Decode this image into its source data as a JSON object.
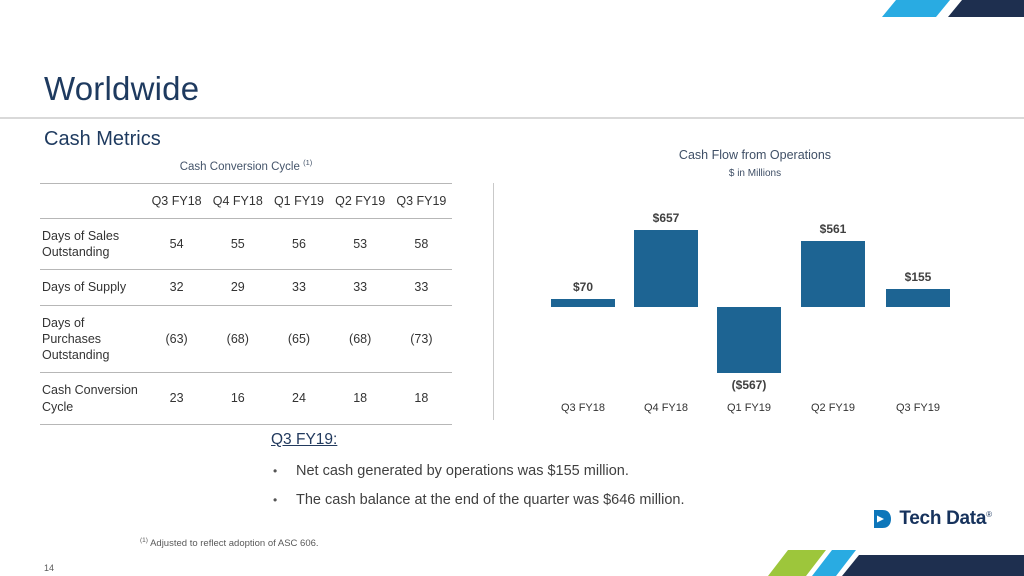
{
  "slide": {
    "page_number": "14",
    "title": "Worldwide",
    "subtitle": "Cash Metrics",
    "footnote_marker": "(1)",
    "footnote": "Adjusted to reflect adoption of ASC 606."
  },
  "table": {
    "title": "Cash Conversion Cycle",
    "title_note": "(1)",
    "columns": [
      "Q3 FY18",
      "Q4 FY18",
      "Q1 FY19",
      "Q2 FY19",
      "Q3 FY19"
    ],
    "rows": [
      {
        "label": "Days of Sales Outstanding",
        "values": [
          "54",
          "55",
          "56",
          "53",
          "58"
        ]
      },
      {
        "label": "Days of Supply",
        "values": [
          "32",
          "29",
          "33",
          "33",
          "33"
        ]
      },
      {
        "label": "Days of Purchases Outstanding",
        "values": [
          "(63)",
          "(68)",
          "(65)",
          "(68)",
          "(73)"
        ]
      },
      {
        "label": "Cash Conversion Cycle",
        "values": [
          "23",
          "16",
          "24",
          "18",
          "18"
        ]
      }
    ]
  },
  "chart_data": {
    "type": "bar",
    "title": "Cash Flow from Operations",
    "subtitle": "$ in Millions",
    "categories": [
      "Q3 FY18",
      "Q4 FY18",
      "Q1 FY19",
      "Q2 FY19",
      "Q3 FY19"
    ],
    "values": [
      70,
      657,
      -567,
      561,
      155
    ],
    "labels": [
      "$70",
      "$657",
      "($567)",
      "$561",
      "$155"
    ],
    "bar_color": "#1d6493",
    "ylim": [
      -650,
      750
    ],
    "grid": false,
    "legend": false
  },
  "highlights": {
    "heading": "Q3 FY19:",
    "bullets": [
      "Net cash generated by operations was $155 million.",
      "The cash balance at the end of the quarter was $646 million."
    ]
  },
  "logo": {
    "name": "Tech Data",
    "registered": "®"
  },
  "colors": {
    "accent_cyan": "#29abe2",
    "accent_green": "#9dc63b",
    "navy_band": "#1e2f4f",
    "title_navy": "#1e3a5f",
    "bar_blue": "#1d6493",
    "divider_gray": "#d9d9d9"
  }
}
